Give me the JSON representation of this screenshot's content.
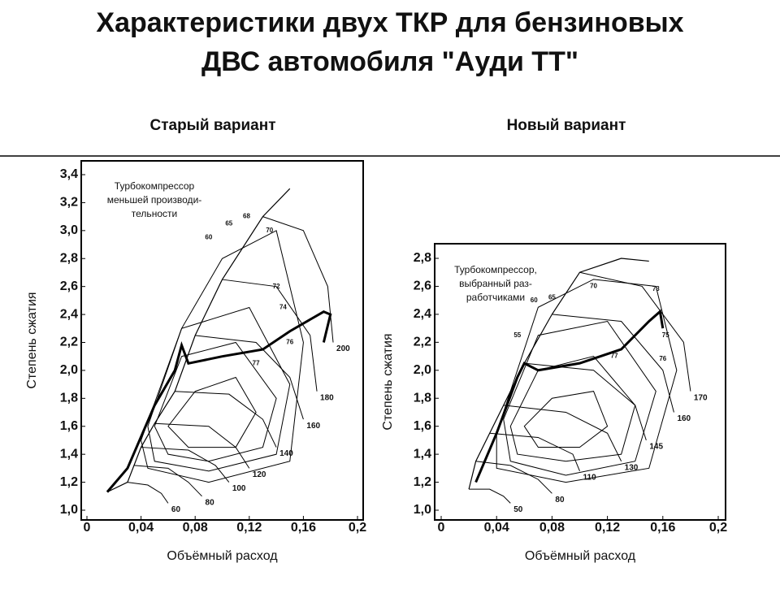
{
  "title": [
    "Характеристики двух ТКР для бензиновых",
    "ДВС автомобиля \"Ауди ТТ\""
  ],
  "chart_data": [
    {
      "type": "line",
      "subtitle": "Старый вариант",
      "xlabel": "Объёмный расход",
      "ylabel": "Степень сжатия",
      "note": [
        "Турбокомпрессор",
        "меньшей производи-",
        "тельности"
      ],
      "xlim": [
        0,
        0.2
      ],
      "ylim": [
        1.0,
        3.4
      ],
      "xticks": [
        0,
        {
          "value": 0.04,
          "label": "0,04"
        },
        {
          "value": 0.08,
          "label": "0,08"
        },
        {
          "value": 0.12,
          "label": "0,12"
        },
        {
          "value": 0.16,
          "label": "0,16"
        },
        {
          "value": 0.2,
          "label": "0,2"
        }
      ],
      "yticks": [
        {
          "value": 1.0,
          "label": "1,0"
        },
        {
          "value": 1.2,
          "label": "1,2"
        },
        {
          "value": 1.4,
          "label": "1,4"
        },
        {
          "value": 1.6,
          "label": "1,6"
        },
        {
          "value": 1.8,
          "label": "1,8"
        },
        {
          "value": 2.0,
          "label": "2,0"
        },
        {
          "value": 2.2,
          "label": "2,2"
        },
        {
          "value": 2.4,
          "label": "2,4"
        },
        {
          "value": 2.6,
          "label": "2,6"
        },
        {
          "value": 2.8,
          "label": "2,8"
        },
        {
          "value": 3.0,
          "label": "3,0"
        },
        {
          "value": 3.2,
          "label": "3,2"
        },
        {
          "value": 3.4,
          "label": "3,4"
        }
      ],
      "surge": {
        "x": [
          0.015,
          0.03,
          0.04,
          0.05,
          0.065,
          0.08,
          0.1,
          0.13,
          0.15
        ],
        "values": [
          1.13,
          1.2,
          1.45,
          1.62,
          1.85,
          2.25,
          2.65,
          3.1,
          3.3
        ]
      },
      "operating": {
        "x": [
          0.015,
          0.03,
          0.05,
          0.065,
          0.07,
          0.075,
          0.1,
          0.13,
          0.15,
          0.175,
          0.18,
          0.175
        ],
        "values": [
          1.13,
          1.3,
          1.75,
          2.0,
          2.18,
          2.05,
          2.1,
          2.15,
          2.28,
          2.42,
          2.4,
          2.2
        ]
      },
      "speed_lines": [
        {
          "label": 60,
          "x": [
            0.03,
            0.045,
            0.055,
            0.06
          ],
          "values": [
            1.2,
            1.18,
            1.12,
            1.05
          ]
        },
        {
          "label": 80,
          "x": [
            0.035,
            0.06,
            0.075,
            0.085
          ],
          "values": [
            1.32,
            1.3,
            1.2,
            1.1
          ]
        },
        {
          "label": 100,
          "x": [
            0.04,
            0.075,
            0.095,
            0.105
          ],
          "values": [
            1.45,
            1.43,
            1.32,
            1.2
          ]
        },
        {
          "label": 120,
          "x": [
            0.05,
            0.09,
            0.11,
            0.12
          ],
          "values": [
            1.62,
            1.6,
            1.45,
            1.3
          ]
        },
        {
          "label": 140,
          "x": [
            0.065,
            0.105,
            0.13,
            0.14
          ],
          "values": [
            1.85,
            1.83,
            1.65,
            1.45
          ]
        },
        {
          "label": 160,
          "x": [
            0.08,
            0.125,
            0.15,
            0.16
          ],
          "values": [
            2.25,
            2.2,
            1.95,
            1.65
          ]
        },
        {
          "label": 180,
          "x": [
            0.1,
            0.14,
            0.165,
            0.17
          ],
          "values": [
            2.65,
            2.6,
            2.25,
            1.85
          ]
        },
        {
          "label": 200,
          "x": [
            0.13,
            0.16,
            0.178,
            0.182
          ],
          "values": [
            3.1,
            3.0,
            2.6,
            2.2
          ]
        }
      ],
      "islands": [
        {
          "x": [
            0.06,
            0.08,
            0.11,
            0.125,
            0.11,
            0.075
          ],
          "values": [
            1.6,
            1.85,
            1.95,
            1.7,
            1.45,
            1.45
          ]
        },
        {
          "x": [
            0.05,
            0.07,
            0.11,
            0.14,
            0.13,
            0.09,
            0.06
          ],
          "values": [
            1.6,
            2.1,
            2.2,
            1.8,
            1.45,
            1.35,
            1.4
          ]
        },
        {
          "x": [
            0.045,
            0.07,
            0.12,
            0.15,
            0.14,
            0.09,
            0.05
          ],
          "values": [
            1.6,
            2.3,
            2.45,
            1.9,
            1.4,
            1.28,
            1.35
          ]
        },
        {
          "x": [
            0.04,
            0.07,
            0.1,
            0.14,
            0.16,
            0.15,
            0.09,
            0.045
          ],
          "values": [
            1.5,
            2.3,
            2.8,
            3.0,
            2.2,
            1.35,
            1.2,
            1.3
          ]
        }
      ],
      "efficiency_labels": {
        "labels": [
          60,
          65,
          68,
          70,
          72,
          74,
          76,
          77
        ],
        "x": [
          0.09,
          0.105,
          0.118,
          0.135,
          0.14,
          0.145,
          0.15,
          0.125
        ],
        "y": [
          2.95,
          3.05,
          3.1,
          3.0,
          2.6,
          2.45,
          2.2,
          2.05
        ]
      }
    },
    {
      "type": "line",
      "subtitle": "Новый вариант",
      "xlabel": "Объёмный расход",
      "ylabel": "Степень сжатия",
      "note": [
        "Турбокомпрессор,",
        "выбранный раз-",
        "работчиками"
      ],
      "xlim": [
        0,
        0.2
      ],
      "ylim": [
        1.0,
        2.8
      ],
      "xticks": [
        0,
        {
          "value": 0.04,
          "label": "0,04"
        },
        {
          "value": 0.08,
          "label": "0,08"
        },
        {
          "value": 0.12,
          "label": "0,12"
        },
        {
          "value": 0.16,
          "label": "0,16"
        },
        {
          "value": 0.2,
          "label": "0,2"
        }
      ],
      "yticks": [
        {
          "value": 1.0,
          "label": "1,0"
        },
        {
          "value": 1.2,
          "label": "1,2"
        },
        {
          "value": 1.4,
          "label": "1,4"
        },
        {
          "value": 1.6,
          "label": "1,6"
        },
        {
          "value": 1.8,
          "label": "1,8"
        },
        {
          "value": 2.0,
          "label": "2,0"
        },
        {
          "value": 2.2,
          "label": "2,2"
        },
        {
          "value": 2.4,
          "label": "2,4"
        },
        {
          "value": 2.6,
          "label": "2,6"
        },
        {
          "value": 2.8,
          "label": "2,8"
        }
      ],
      "surge": {
        "x": [
          0.02,
          0.025,
          0.035,
          0.045,
          0.06,
          0.08,
          0.1,
          0.13,
          0.15
        ],
        "values": [
          1.15,
          1.35,
          1.55,
          1.75,
          2.05,
          2.4,
          2.7,
          2.8,
          2.78
        ]
      },
      "operating": {
        "x": [
          0.025,
          0.04,
          0.055,
          0.06,
          0.07,
          0.1,
          0.13,
          0.15,
          0.158,
          0.16
        ],
        "values": [
          1.2,
          1.55,
          1.95,
          2.05,
          2.0,
          2.05,
          2.15,
          2.35,
          2.42,
          2.3
        ]
      },
      "speed_lines": [
        {
          "label": 50,
          "x": [
            0.02,
            0.035,
            0.045,
            0.05
          ],
          "values": [
            1.15,
            1.15,
            1.1,
            1.05
          ]
        },
        {
          "label": 80,
          "x": [
            0.025,
            0.05,
            0.07,
            0.08
          ],
          "values": [
            1.35,
            1.32,
            1.22,
            1.12
          ]
        },
        {
          "label": 110,
          "x": [
            0.035,
            0.07,
            0.095,
            0.1
          ],
          "values": [
            1.55,
            1.52,
            1.4,
            1.28
          ]
        },
        {
          "label": 130,
          "x": [
            0.045,
            0.09,
            0.12,
            0.13
          ],
          "values": [
            1.75,
            1.7,
            1.55,
            1.35
          ]
        },
        {
          "label": 145,
          "x": [
            0.06,
            0.11,
            0.14,
            0.148
          ],
          "values": [
            2.05,
            2.0,
            1.75,
            1.5
          ]
        },
        {
          "label": 160,
          "x": [
            0.08,
            0.13,
            0.16,
            0.168
          ],
          "values": [
            2.4,
            2.35,
            2.0,
            1.7
          ]
        },
        {
          "label": 170,
          "x": [
            0.1,
            0.145,
            0.175,
            0.18
          ],
          "values": [
            2.7,
            2.6,
            2.2,
            1.85
          ]
        }
      ],
      "islands": [
        {
          "x": [
            0.06,
            0.08,
            0.11,
            0.12,
            0.1,
            0.07
          ],
          "values": [
            1.6,
            1.8,
            1.85,
            1.6,
            1.45,
            1.45
          ]
        },
        {
          "x": [
            0.05,
            0.07,
            0.11,
            0.14,
            0.13,
            0.09,
            0.055
          ],
          "values": [
            1.6,
            2.0,
            2.1,
            1.75,
            1.4,
            1.35,
            1.4
          ]
        },
        {
          "x": [
            0.045,
            0.07,
            0.12,
            0.155,
            0.14,
            0.09,
            0.05
          ],
          "values": [
            1.65,
            2.25,
            2.35,
            1.85,
            1.35,
            1.25,
            1.35
          ]
        },
        {
          "x": [
            0.04,
            0.07,
            0.11,
            0.155,
            0.17,
            0.15,
            0.09,
            0.04
          ],
          "values": [
            1.55,
            2.45,
            2.65,
            2.6,
            2.0,
            1.3,
            1.2,
            1.3
          ]
        }
      ],
      "efficiency_labels": {
        "labels": [
          55,
          60,
          65,
          70,
          73,
          75,
          76,
          77
        ],
        "x": [
          0.055,
          0.067,
          0.08,
          0.11,
          0.155,
          0.162,
          0.16,
          0.125
        ],
        "y": [
          2.25,
          2.5,
          2.52,
          2.6,
          2.58,
          2.25,
          2.08,
          2.1
        ]
      }
    }
  ]
}
